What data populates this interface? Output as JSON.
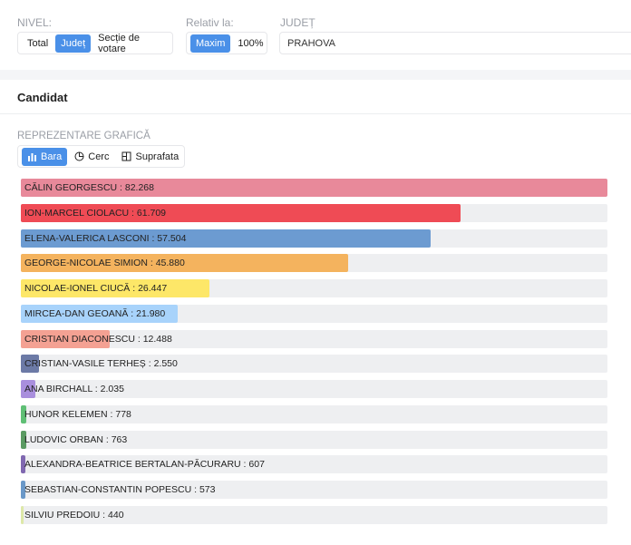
{
  "filters": {
    "level": {
      "label": "NIVEL:",
      "options": [
        "Total",
        "Județ",
        "Secție de votare"
      ],
      "active": 1
    },
    "relative": {
      "label": "Relativ la:",
      "options": [
        "Maxim",
        "100%"
      ],
      "active": 0
    },
    "county": {
      "label": "JUDEȚ",
      "value": "PRAHOVA"
    }
  },
  "panel": {
    "title": "Candidat",
    "subtitle": "REPREZENTARE GRAFICĂ",
    "tabs": [
      "Bara",
      "Cerc",
      "Suprafata"
    ],
    "active_tab": 0
  },
  "chart_data": {
    "type": "bar",
    "orientation": "horizontal",
    "label_separator": " : ",
    "categories": [
      "CĂLIN GEORGESCU",
      "ION-MARCEL CIOLACU",
      "ELENA-VALERICA LASCONI",
      "GEORGE-NICOLAE SIMION",
      "NICOLAE-IONEL CIUCĂ",
      "MIRCEA-DAN GEOANĂ",
      "CRISTIAN DIACONESCU",
      "CRISTIAN-VASILE TERHEȘ",
      "ANA BIRCHALL",
      "HUNOR KELEMEN",
      "LUDOVIC ORBAN",
      "ALEXANDRA-BEATRICE BERTALAN-PĂCURARU",
      "SEBASTIAN-CONSTANTIN POPESCU",
      "SILVIU PREDOIU"
    ],
    "values": [
      82268,
      61709,
      57504,
      45880,
      26447,
      21980,
      12488,
      2550,
      2035,
      778,
      763,
      607,
      573,
      440
    ],
    "value_labels": [
      "82.268",
      "61.709",
      "57.504",
      "45.880",
      "26.447",
      "21.980",
      "12.488",
      "2.550",
      "2.035",
      "778",
      "763",
      "607",
      "573",
      "440"
    ],
    "colors": [
      "#e8899a",
      "#ef4b55",
      "#6c9bd1",
      "#f4b35e",
      "#fde768",
      "#a8d3fb",
      "#f4a193",
      "#6c7aa6",
      "#a98fdd",
      "#5fbf75",
      "#5a9a62",
      "#8068b0",
      "#6a98c8",
      "#dde8a8"
    ],
    "xlim": [
      0,
      82268
    ]
  }
}
